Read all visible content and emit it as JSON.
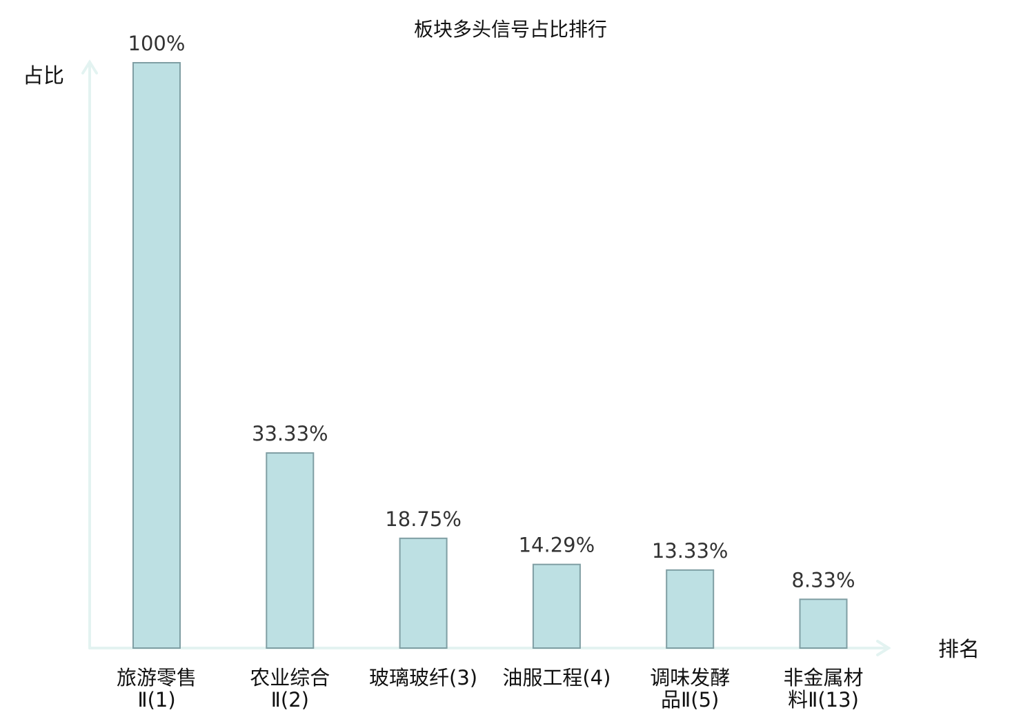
{
  "chart_data": {
    "type": "bar",
    "title": "板块多头信号占比排行",
    "xlabel": "排名",
    "ylabel": "占比",
    "ylim": [
      0,
      100
    ],
    "grid": false,
    "categories": [
      [
        "旅游零售",
        "Ⅱ(1)"
      ],
      [
        "农业综合",
        "Ⅱ(2)"
      ],
      [
        "玻璃玻纤(3)"
      ],
      [
        "油服工程(4)"
      ],
      [
        "调味发酵",
        "品Ⅱ(5)"
      ],
      [
        "非金属材",
        "料Ⅱ(13)"
      ]
    ],
    "values": [
      100,
      33.33,
      18.75,
      14.29,
      13.33,
      8.33
    ],
    "value_labels": [
      "100%",
      "33.33%",
      "18.75%",
      "14.29%",
      "13.33%",
      "8.33%"
    ],
    "highlight_index": 5,
    "colors": {
      "bar_fill": "#bde0e3",
      "bar_stroke": "#7f9ea3",
      "axis": "#e3f3f1",
      "highlight_text": "#e01010",
      "text": "#111111",
      "value_text": "#333333"
    }
  }
}
